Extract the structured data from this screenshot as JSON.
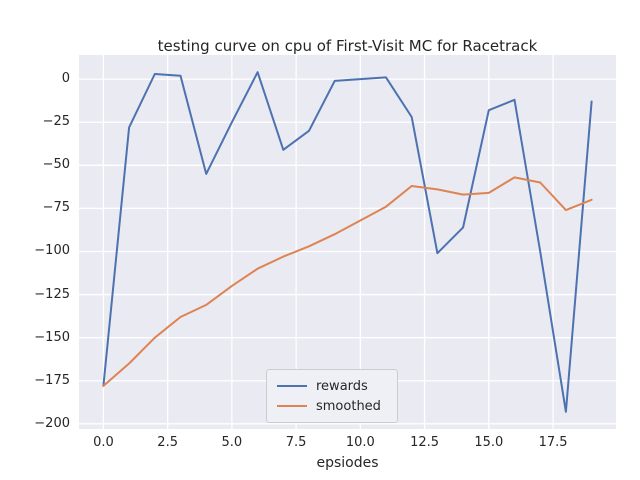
{
  "chart_data": {
    "type": "line",
    "title": "testing curve on cpu of First-Visit MC for Racetrack",
    "xlabel": "epsiodes",
    "ylabel": "",
    "x": [
      0,
      1,
      2,
      3,
      4,
      5,
      6,
      7,
      8,
      9,
      10,
      11,
      12,
      13,
      14,
      15,
      16,
      17,
      18,
      19
    ],
    "series": [
      {
        "name": "rewards",
        "color": "#4c72b0",
        "values": [
          -178,
          -28,
          3,
          2,
          -55,
          -25,
          4,
          -41,
          -30,
          -1,
          0,
          1,
          -22,
          -101,
          -86,
          -18,
          -12,
          -100,
          -193,
          -13
        ]
      },
      {
        "name": "smoothed",
        "color": "#dd8452",
        "values": [
          -178,
          -165,
          -150,
          -138,
          -131,
          -120,
          -110,
          -103,
          -97,
          -90,
          -82,
          -74,
          -62,
          -64,
          -67,
          -66,
          -57,
          -60,
          -76,
          -70
        ]
      }
    ],
    "xlim": [
      -0.95,
      19.95
    ],
    "ylim": [
      -203,
      14
    ],
    "xticks": [
      0,
      2.5,
      5,
      7.5,
      10,
      12.5,
      15,
      17.5
    ],
    "xtick_labels": [
      "0.0",
      "2.5",
      "5.0",
      "7.5",
      "10.0",
      "12.5",
      "15.0",
      "17.5"
    ],
    "yticks": [
      0,
      -25,
      -50,
      -75,
      -100,
      -125,
      -150,
      -175,
      -200
    ],
    "ytick_labels": [
      "0",
      "−25",
      "−50",
      "−75",
      "−100",
      "−125",
      "−150",
      "−175",
      "−200"
    ],
    "grid": true,
    "legend": {
      "position": "lower center",
      "entries": [
        "rewards",
        "smoothed"
      ]
    },
    "colors": {
      "axes_bg": "#eaeaf2",
      "grid": "#ffffff",
      "text": "#262626",
      "figure_bg": "#ffffff"
    }
  }
}
